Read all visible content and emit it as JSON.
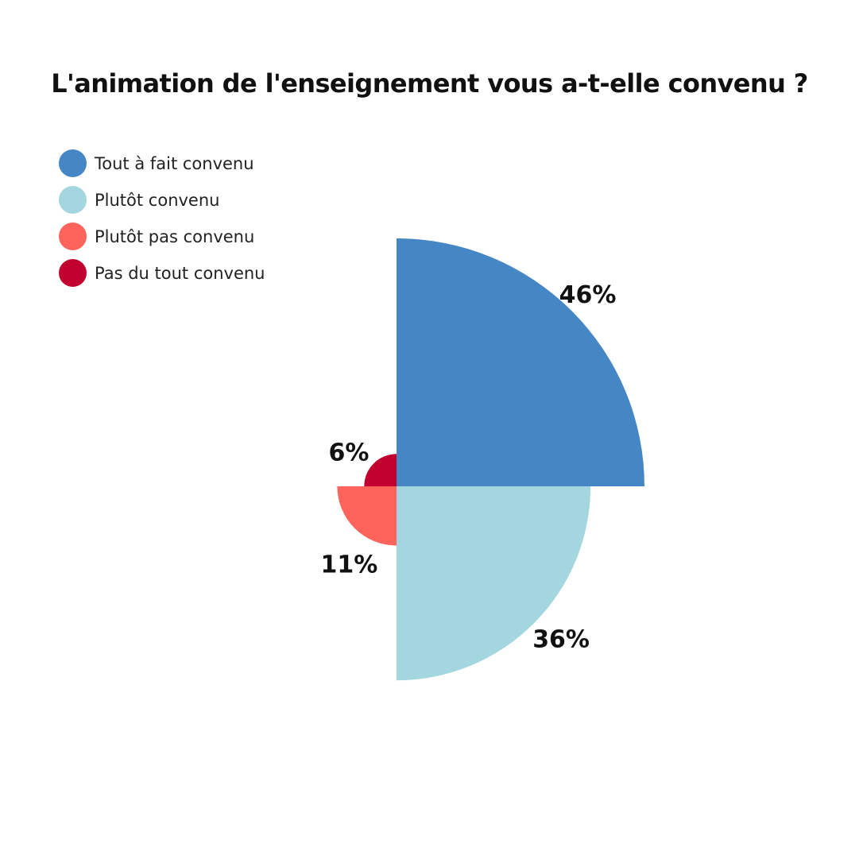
{
  "chart_data": {
    "type": "pie",
    "variant": "polar-area",
    "title": "L'animation de l'enseignement vous a-t-elle convenu ?",
    "legend_position": "top-left",
    "categories": [
      "Tout à fait convenu",
      "Plutôt convenu",
      "Plutôt pas convenu",
      "Pas du tout convenu"
    ],
    "values": [
      46,
      36,
      11,
      6
    ],
    "value_labels": [
      "46%",
      "36%",
      "11%",
      "6%"
    ],
    "colors": [
      "#4586c5",
      "#a3d6df",
      "#fe645c",
      "#c2002f"
    ]
  }
}
